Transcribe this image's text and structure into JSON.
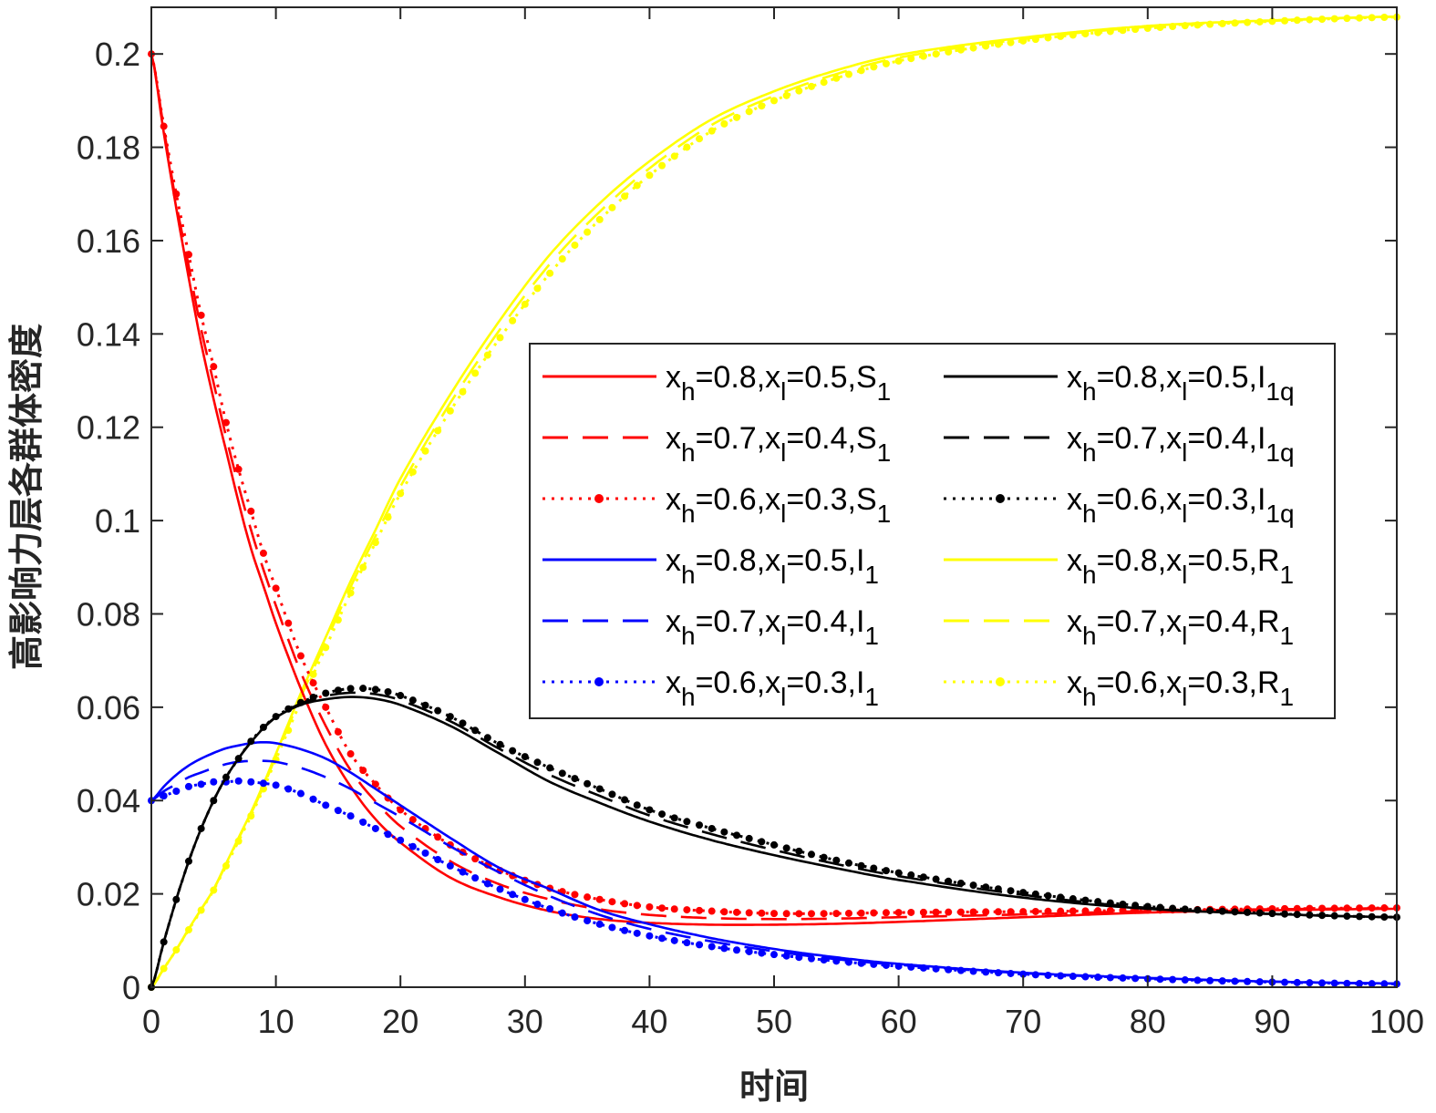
{
  "chart_data": {
    "type": "line",
    "title": "",
    "xlabel": "时间",
    "ylabel": "高影响力层各群体密度",
    "xlim": [
      0,
      100
    ],
    "ylim": [
      0,
      0.21
    ],
    "xticks": [
      "0",
      "10",
      "20",
      "30",
      "40",
      "50",
      "60",
      "70",
      "80",
      "90",
      "100"
    ],
    "yticks": [
      "0",
      "0.02",
      "0.04",
      "0.06",
      "0.08",
      "0.1",
      "0.12",
      "0.14",
      "0.16",
      "0.18",
      "0.2"
    ],
    "grid": false,
    "legend_placement": "center-right",
    "x": [
      0,
      1,
      2,
      3,
      4,
      5,
      6,
      7,
      8,
      9,
      10,
      12,
      14,
      16,
      18,
      20,
      24,
      28,
      32,
      36,
      40,
      45,
      50,
      55,
      60,
      70,
      80,
      90,
      100
    ],
    "series": [
      {
        "name": "x_h=0.8,x_l=0.5,S_1",
        "color": "#ff0000",
        "style": "solid",
        "values": [
          0.2,
          0.183,
          0.167,
          0.152,
          0.138,
          0.126,
          0.115,
          0.104,
          0.094,
          0.086,
          0.078,
          0.064,
          0.052,
          0.043,
          0.036,
          0.031,
          0.0235,
          0.0192,
          0.0163,
          0.0146,
          0.0138,
          0.0134,
          0.0134,
          0.0136,
          0.014,
          0.015,
          0.016,
          0.0165,
          0.0168
        ]
      },
      {
        "name": "x_h=0.7,x_l=0.4,S_1",
        "color": "#ff0000",
        "style": "dashed",
        "values": [
          0.2,
          0.184,
          0.168,
          0.1545,
          0.141,
          0.1295,
          0.118,
          0.1075,
          0.098,
          0.0895,
          0.0818,
          0.0675,
          0.056,
          0.0465,
          0.0398,
          0.0345,
          0.027,
          0.022,
          0.0188,
          0.0167,
          0.0155,
          0.0148,
          0.0146,
          0.0147,
          0.015,
          0.0156,
          0.0163,
          0.0167,
          0.0169
        ]
      },
      {
        "name": "x_h=0.6,x_l=0.3,S_1",
        "color": "#ff0000",
        "style": "dotted-marker",
        "values": [
          0.2,
          0.1845,
          0.17,
          0.157,
          0.144,
          0.133,
          0.121,
          0.111,
          0.102,
          0.093,
          0.0855,
          0.071,
          0.06,
          0.05,
          0.0435,
          0.038,
          0.0305,
          0.025,
          0.0212,
          0.0188,
          0.0172,
          0.0163,
          0.0158,
          0.0158,
          0.016,
          0.0162,
          0.0165,
          0.0168,
          0.017
        ]
      },
      {
        "name": "x_h=0.8,x_l=0.5,I_1",
        "color": "#0000ff",
        "style": "solid",
        "values": [
          0.04,
          0.043,
          0.0455,
          0.0475,
          0.049,
          0.0502,
          0.0512,
          0.0518,
          0.0523,
          0.0525,
          0.0523,
          0.051,
          0.049,
          0.046,
          0.0425,
          0.039,
          0.032,
          0.0255,
          0.021,
          0.0165,
          0.0135,
          0.0105,
          0.0082,
          0.0064,
          0.005,
          0.0031,
          0.002,
          0.0012,
          0.0008
        ]
      },
      {
        "name": "x_h=0.7,x_l=0.4,I_1",
        "color": "#0000ff",
        "style": "dashed",
        "values": [
          0.04,
          0.042,
          0.0435,
          0.045,
          0.046,
          0.047,
          0.0478,
          0.0483,
          0.0485,
          0.0485,
          0.0483,
          0.047,
          0.045,
          0.0425,
          0.0395,
          0.0365,
          0.0302,
          0.0245,
          0.0195,
          0.0155,
          0.0125,
          0.0098,
          0.0077,
          0.006,
          0.0048,
          0.003,
          0.0019,
          0.0012,
          0.0008
        ]
      },
      {
        "name": "x_h=0.6,x_l=0.3,I_1",
        "color": "#0000ff",
        "style": "dotted-marker",
        "values": [
          0.04,
          0.041,
          0.042,
          0.043,
          0.0435,
          0.044,
          0.044,
          0.0442,
          0.044,
          0.0437,
          0.0433,
          0.0415,
          0.039,
          0.0367,
          0.034,
          0.0315,
          0.026,
          0.021,
          0.0168,
          0.0135,
          0.011,
          0.0087,
          0.007,
          0.0056,
          0.0045,
          0.0028,
          0.0018,
          0.0011,
          0.0007
        ]
      },
      {
        "name": "x_h=0.8,x_l=0.5,I_1q",
        "color": "#000000",
        "style": "solid",
        "values": [
          0,
          0.0097,
          0.0188,
          0.027,
          0.034,
          0.04,
          0.045,
          0.049,
          0.0525,
          0.0555,
          0.0578,
          0.0605,
          0.0617,
          0.0622,
          0.0618,
          0.0605,
          0.056,
          0.05,
          0.044,
          0.0395,
          0.0355,
          0.0315,
          0.0283,
          0.0255,
          0.023,
          0.0192,
          0.0168,
          0.0157,
          0.015
        ]
      },
      {
        "name": "x_h=0.7,x_l=0.4,I_1q",
        "color": "#000000",
        "style": "dashed",
        "values": [
          0,
          0.0097,
          0.0188,
          0.027,
          0.034,
          0.04,
          0.045,
          0.049,
          0.0526,
          0.0556,
          0.0579,
          0.0608,
          0.0624,
          0.0631,
          0.0628,
          0.0615,
          0.057,
          0.051,
          0.0455,
          0.041,
          0.0368,
          0.0328,
          0.0294,
          0.0264,
          0.0238,
          0.0198,
          0.017,
          0.0157,
          0.015
        ]
      },
      {
        "name": "x_h=0.6,x_l=0.3,I_1q",
        "color": "#000000",
        "style": "dotted-marker",
        "values": [
          0,
          0.0097,
          0.0188,
          0.027,
          0.034,
          0.04,
          0.045,
          0.049,
          0.0527,
          0.0557,
          0.058,
          0.061,
          0.063,
          0.064,
          0.0638,
          0.0625,
          0.058,
          0.052,
          0.047,
          0.0425,
          0.038,
          0.034,
          0.0305,
          0.0272,
          0.0245,
          0.0203,
          0.0173,
          0.0158,
          0.015
        ]
      },
      {
        "name": "x_h=0.8,x_l=0.5,R_1",
        "color": "#ffff00",
        "style": "solid",
        "values": [
          0,
          0.004,
          0.008,
          0.0125,
          0.0167,
          0.021,
          0.0265,
          0.032,
          0.0375,
          0.0435,
          0.05,
          0.063,
          0.075,
          0.087,
          0.098,
          0.109,
          0.127,
          0.143,
          0.157,
          0.168,
          0.177,
          0.186,
          0.192,
          0.1965,
          0.1998,
          0.2035,
          0.206,
          0.2072,
          0.208
        ]
      },
      {
        "name": "x_h=0.7,x_l=0.4,R_1",
        "color": "#ffff00",
        "style": "dashed",
        "values": [
          0,
          0.004,
          0.008,
          0.0125,
          0.0167,
          0.021,
          0.0263,
          0.0318,
          0.0372,
          0.043,
          0.0495,
          0.0622,
          0.074,
          0.0858,
          0.0967,
          0.1073,
          0.1252,
          0.141,
          0.155,
          0.1662,
          0.1755,
          0.1848,
          0.191,
          0.1957,
          0.1992,
          0.2032,
          0.2058,
          0.2071,
          0.208
        ]
      },
      {
        "name": "x_h=0.6,x_l=0.3,R_1",
        "color": "#ffff00",
        "style": "dotted-marker",
        "values": [
          0,
          0.004,
          0.008,
          0.0123,
          0.0165,
          0.0208,
          0.026,
          0.0313,
          0.0367,
          0.0425,
          0.0488,
          0.0612,
          0.0728,
          0.0845,
          0.0953,
          0.1058,
          0.1235,
          0.1392,
          0.153,
          0.1645,
          0.174,
          0.1835,
          0.19,
          0.1948,
          0.1985,
          0.2028,
          0.2055,
          0.207,
          0.2079
        ]
      }
    ]
  }
}
